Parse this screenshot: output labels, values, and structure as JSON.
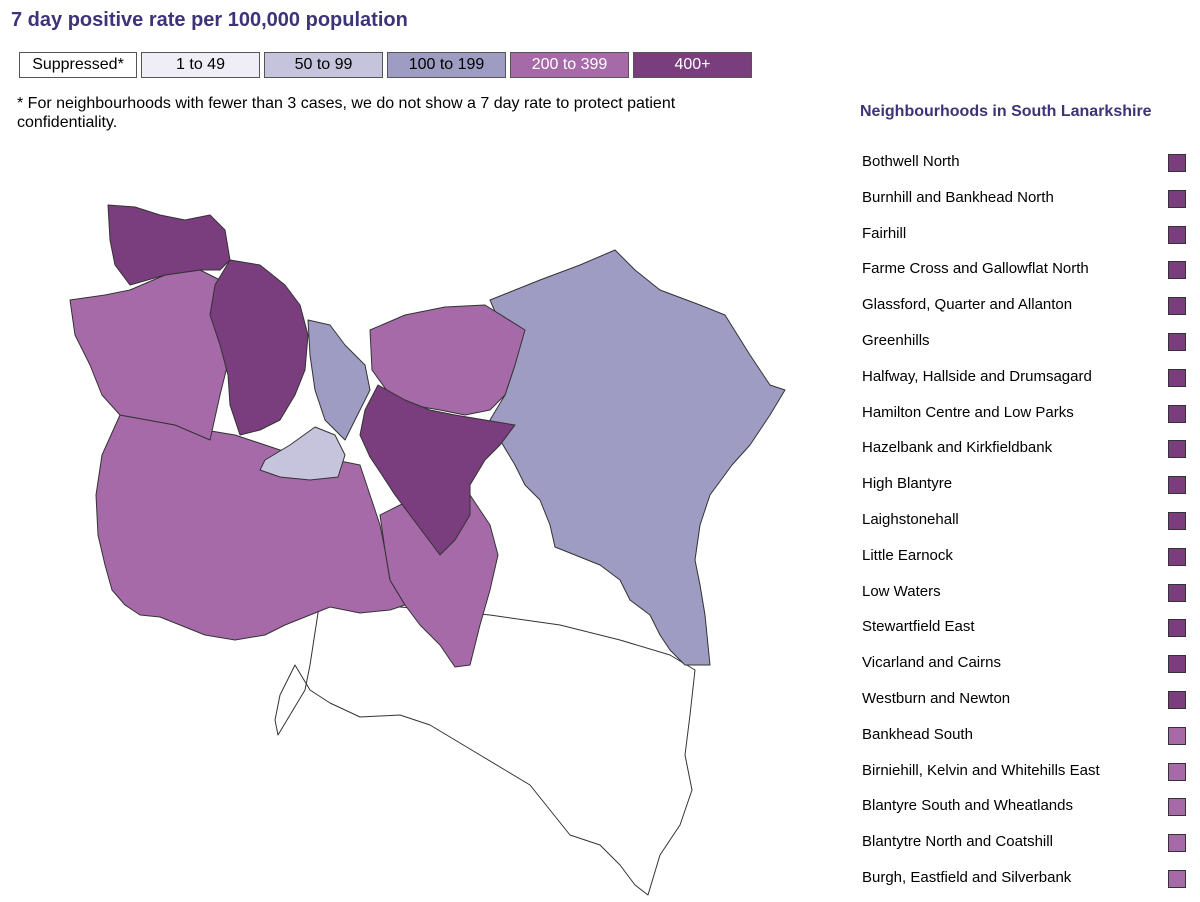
{
  "title": "7 day positive rate per 100,000 population",
  "legend": [
    {
      "label": "Suppressed*",
      "color": "#ffffff",
      "text_color": "#000000"
    },
    {
      "label": "1 to 49",
      "color": "#efedf5",
      "text_color": "#000000"
    },
    {
      "label": "50 to 99",
      "color": "#c6c4dc",
      "text_color": "#000000"
    },
    {
      "label": "100 to 199",
      "color": "#9e9cc2",
      "text_color": "#000000"
    },
    {
      "label": "200 to 399",
      "color": "#a66aa8",
      "text_color": "#ffffff"
    },
    {
      "label": "400+",
      "color": "#7a3d7d",
      "text_color": "#ffffff"
    }
  ],
  "note": "* For neighbourhoods with fewer than 3 cases, we do not show a 7 day rate to protect patient confidentiality.",
  "sidebar": {
    "title": "Neighbourhoods in South Lanarkshire",
    "items": [
      {
        "label": "Bothwell North",
        "color": "#7a3d7d"
      },
      {
        "label": "Burnhill and Bankhead North",
        "color": "#7a3d7d"
      },
      {
        "label": "Fairhill",
        "color": "#7a3d7d"
      },
      {
        "label": "Farme Cross and Gallowflat North",
        "color": "#7a3d7d"
      },
      {
        "label": "Glassford, Quarter and Allanton",
        "color": "#7a3d7d"
      },
      {
        "label": "Greenhills",
        "color": "#7a3d7d"
      },
      {
        "label": "Halfway, Hallside and Drumsagard",
        "color": "#7a3d7d"
      },
      {
        "label": "Hamilton Centre and Low Parks",
        "color": "#7a3d7d"
      },
      {
        "label": "Hazelbank and Kirkfieldbank",
        "color": "#7a3d7d"
      },
      {
        "label": "High Blantyre",
        "color": "#7a3d7d"
      },
      {
        "label": "Laighstonehall",
        "color": "#7a3d7d"
      },
      {
        "label": "Little Earnock",
        "color": "#7a3d7d"
      },
      {
        "label": "Low Waters",
        "color": "#7a3d7d"
      },
      {
        "label": "Stewartfield East",
        "color": "#7a3d7d"
      },
      {
        "label": "Vicarland and Cairns",
        "color": "#7a3d7d"
      },
      {
        "label": "Westburn and Newton",
        "color": "#7a3d7d"
      },
      {
        "label": "Bankhead South",
        "color": "#a66aa8"
      },
      {
        "label": "Birniehill, Kelvin and Whitehills East",
        "color": "#a66aa8"
      },
      {
        "label": "Blantyre South and Wheatlands",
        "color": "#a66aa8"
      },
      {
        "label": "Blantytre North and Coatshill",
        "color": "#a66aa8"
      },
      {
        "label": "Burgh, Eastfield and Silverbank",
        "color": "#a66aa8"
      }
    ]
  },
  "map": {
    "regions": [
      {
        "id": "southern-suppressed",
        "band": "Suppressed*",
        "color": "#ffffff"
      },
      {
        "id": "west-rural",
        "band": "200 to 399",
        "color": "#a66aa8"
      },
      {
        "id": "lanark-south",
        "band": "200 to 399",
        "color": "#a66aa8"
      },
      {
        "id": "northwest-urban",
        "band": "200 to 399",
        "color": "#a66aa8"
      },
      {
        "id": "east-rural",
        "band": "100 to 199",
        "color": "#9e9cc2"
      },
      {
        "id": "central-strip",
        "band": "100 to 199",
        "color": "#9e9cc2"
      },
      {
        "id": "north-central",
        "band": "200 to 399",
        "color": "#a66aa8"
      },
      {
        "id": "hamilton-area",
        "band": "400+",
        "color": "#7a3d7d"
      },
      {
        "id": "lanark-centre",
        "band": "400+",
        "color": "#7a3d7d"
      },
      {
        "id": "blantyre-area",
        "band": "50 to 99",
        "color": "#c6c4dc"
      },
      {
        "id": "rutherglen-north",
        "band": "400+",
        "color": "#7a3d7d"
      }
    ]
  }
}
